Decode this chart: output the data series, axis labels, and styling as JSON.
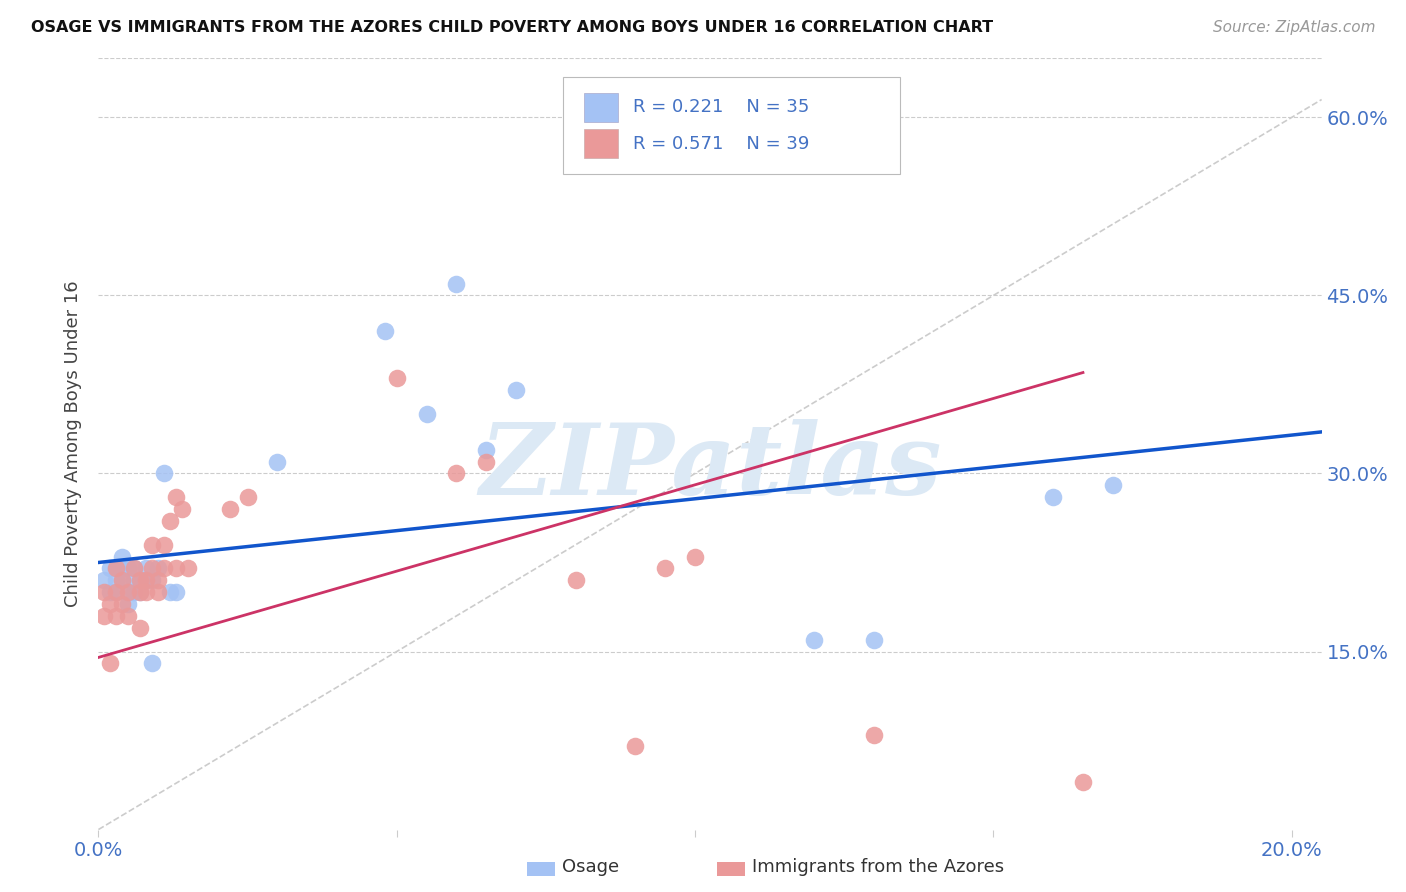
{
  "title": "OSAGE VS IMMIGRANTS FROM THE AZORES CHILD POVERTY AMONG BOYS UNDER 16 CORRELATION CHART",
  "source": "Source: ZipAtlas.com",
  "ylabel": "Child Poverty Among Boys Under 16",
  "ytick_labels": [
    "15.0%",
    "30.0%",
    "45.0%",
    "60.0%"
  ],
  "ytick_values": [
    0.15,
    0.3,
    0.45,
    0.6
  ],
  "xtick_positions": [
    0.0,
    0.05,
    0.1,
    0.15,
    0.2
  ],
  "xtick_labels": [
    "0.0%",
    "",
    "",
    "",
    "20.0%"
  ],
  "xlim": [
    0.0,
    0.205
  ],
  "ylim": [
    0.0,
    0.65
  ],
  "legend_osage_label": "Osage",
  "legend_azores_label": "Immigrants from the Azores",
  "legend_r_osage": "0.221",
  "legend_n_osage": "35",
  "legend_r_azores": "0.571",
  "legend_n_azores": "39",
  "osage_color": "#a4c2f4",
  "azores_color": "#ea9999",
  "osage_line_color": "#1155cc",
  "azores_line_color": "#cc3366",
  "diagonal_color": "#cccccc",
  "bg_color": "#ffffff",
  "grid_color": "#cccccc",
  "watermark_text": "ZIPatlas",
  "watermark_color": "#dce9f5",
  "osage_x": [
    0.001,
    0.002,
    0.002,
    0.003,
    0.003,
    0.003,
    0.004,
    0.004,
    0.004,
    0.005,
    0.005,
    0.005,
    0.006,
    0.006,
    0.006,
    0.007,
    0.007,
    0.008,
    0.008,
    0.009,
    0.009,
    0.01,
    0.011,
    0.012,
    0.013,
    0.03,
    0.048,
    0.055,
    0.06,
    0.065,
    0.07,
    0.12,
    0.13,
    0.16,
    0.17
  ],
  "osage_y": [
    0.21,
    0.22,
    0.2,
    0.21,
    0.2,
    0.22,
    0.21,
    0.22,
    0.23,
    0.2,
    0.22,
    0.19,
    0.2,
    0.22,
    0.21,
    0.2,
    0.21,
    0.21,
    0.22,
    0.21,
    0.14,
    0.22,
    0.3,
    0.2,
    0.2,
    0.31,
    0.42,
    0.35,
    0.46,
    0.32,
    0.37,
    0.16,
    0.16,
    0.28,
    0.29
  ],
  "azores_x": [
    0.001,
    0.001,
    0.002,
    0.002,
    0.003,
    0.003,
    0.003,
    0.004,
    0.004,
    0.005,
    0.005,
    0.006,
    0.007,
    0.007,
    0.007,
    0.008,
    0.008,
    0.009,
    0.009,
    0.01,
    0.01,
    0.011,
    0.011,
    0.012,
    0.013,
    0.013,
    0.014,
    0.015,
    0.022,
    0.025,
    0.05,
    0.06,
    0.065,
    0.08,
    0.09,
    0.095,
    0.1,
    0.13,
    0.165
  ],
  "azores_y": [
    0.2,
    0.18,
    0.19,
    0.14,
    0.22,
    0.2,
    0.18,
    0.21,
    0.19,
    0.2,
    0.18,
    0.22,
    0.2,
    0.21,
    0.17,
    0.21,
    0.2,
    0.22,
    0.24,
    0.21,
    0.2,
    0.22,
    0.24,
    0.26,
    0.28,
    0.22,
    0.27,
    0.22,
    0.27,
    0.28,
    0.38,
    0.3,
    0.31,
    0.21,
    0.07,
    0.22,
    0.23,
    0.08,
    0.04
  ]
}
